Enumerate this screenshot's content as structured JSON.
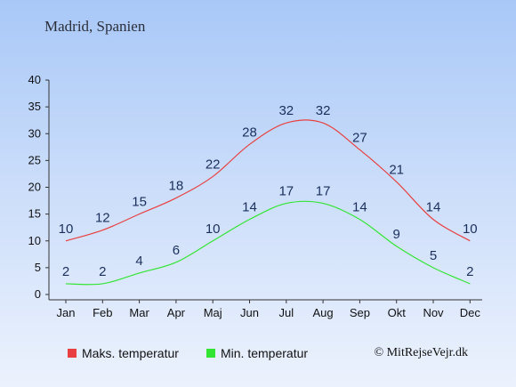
{
  "title": "Madrid, Spanien",
  "credit": "© MitRejseVejr.dk",
  "colors": {
    "max": "#e84040",
    "min": "#33e533",
    "label": "#1a2f5c",
    "axis": "#333333"
  },
  "chart_data": {
    "type": "line",
    "categories": [
      "Jan",
      "Feb",
      "Mar",
      "Apr",
      "Maj",
      "Jun",
      "Jul",
      "Aug",
      "Sep",
      "Okt",
      "Nov",
      "Dec"
    ],
    "ylim": [
      0,
      40
    ],
    "yticks": [
      0,
      5,
      10,
      15,
      20,
      25,
      30,
      35,
      40
    ],
    "grid": false,
    "legend_placement": "bottom",
    "series": [
      {
        "name": "Maks. temperatur",
        "color": "#e84040",
        "values": [
          10,
          12,
          15,
          18,
          22,
          28,
          32,
          32,
          27,
          21,
          14,
          10
        ]
      },
      {
        "name": "Min. temperatur",
        "color": "#33e533",
        "values": [
          2,
          2,
          4,
          6,
          10,
          14,
          17,
          17,
          14,
          9,
          5,
          2
        ]
      }
    ]
  }
}
